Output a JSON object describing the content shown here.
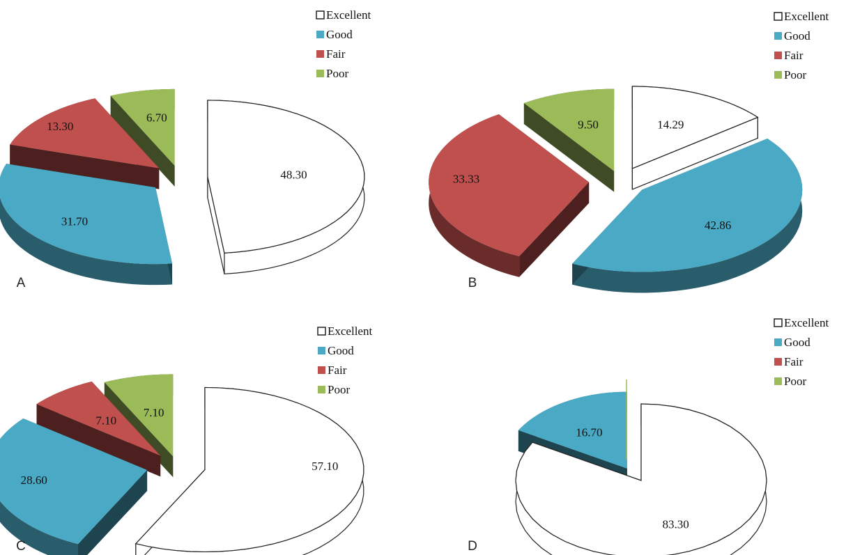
{
  "colors": {
    "Excellent": "#ffffff",
    "Good": "#4aa9c5",
    "Fair": "#c0504d",
    "Poor": "#9bbb59",
    "outline": "#222222"
  },
  "chart_data": [
    {
      "type": "pie",
      "panel": "A",
      "categories": [
        "Excellent",
        "Good",
        "Fair",
        "Poor"
      ],
      "values": [
        48.3,
        31.7,
        13.3,
        6.7
      ],
      "labels": [
        "48.30",
        "31.70",
        "13.30",
        "6.70"
      ],
      "legend": [
        "Excellent",
        "Good",
        "Fair",
        "Poor"
      ],
      "legend_position": "top-right",
      "exploded": true,
      "three_d": true
    },
    {
      "type": "pie",
      "panel": "B",
      "categories": [
        "Excellent",
        "Good",
        "Fair",
        "Poor"
      ],
      "values": [
        14.29,
        42.86,
        33.33,
        9.5
      ],
      "labels": [
        "14.29",
        "42.86",
        "33.33",
        "9.50"
      ],
      "legend": [
        "Excellent",
        "Good",
        "Fair",
        "Poor"
      ],
      "legend_position": "top-right",
      "exploded": true,
      "three_d": true
    },
    {
      "type": "pie",
      "panel": "C",
      "categories": [
        "Excellent",
        "Good",
        "Fair",
        "Poor"
      ],
      "values": [
        57.1,
        28.6,
        7.1,
        7.1
      ],
      "labels": [
        "57.10",
        "28.60",
        "7.10",
        "7.10"
      ],
      "legend": [
        "Excellent",
        "Good",
        "Fair",
        "Poor"
      ],
      "legend_position": "top-right",
      "exploded": true,
      "three_d": true
    },
    {
      "type": "pie",
      "panel": "D",
      "categories": [
        "Excellent",
        "Good",
        "Fair",
        "Poor"
      ],
      "values": [
        83.3,
        16.7,
        0,
        0
      ],
      "labels": [
        "83.30",
        "16.70",
        "",
        ""
      ],
      "legend": [
        "Excellent",
        "Good",
        "Fair",
        "Poor"
      ],
      "legend_position": "top-right",
      "exploded": true,
      "three_d": true
    }
  ]
}
